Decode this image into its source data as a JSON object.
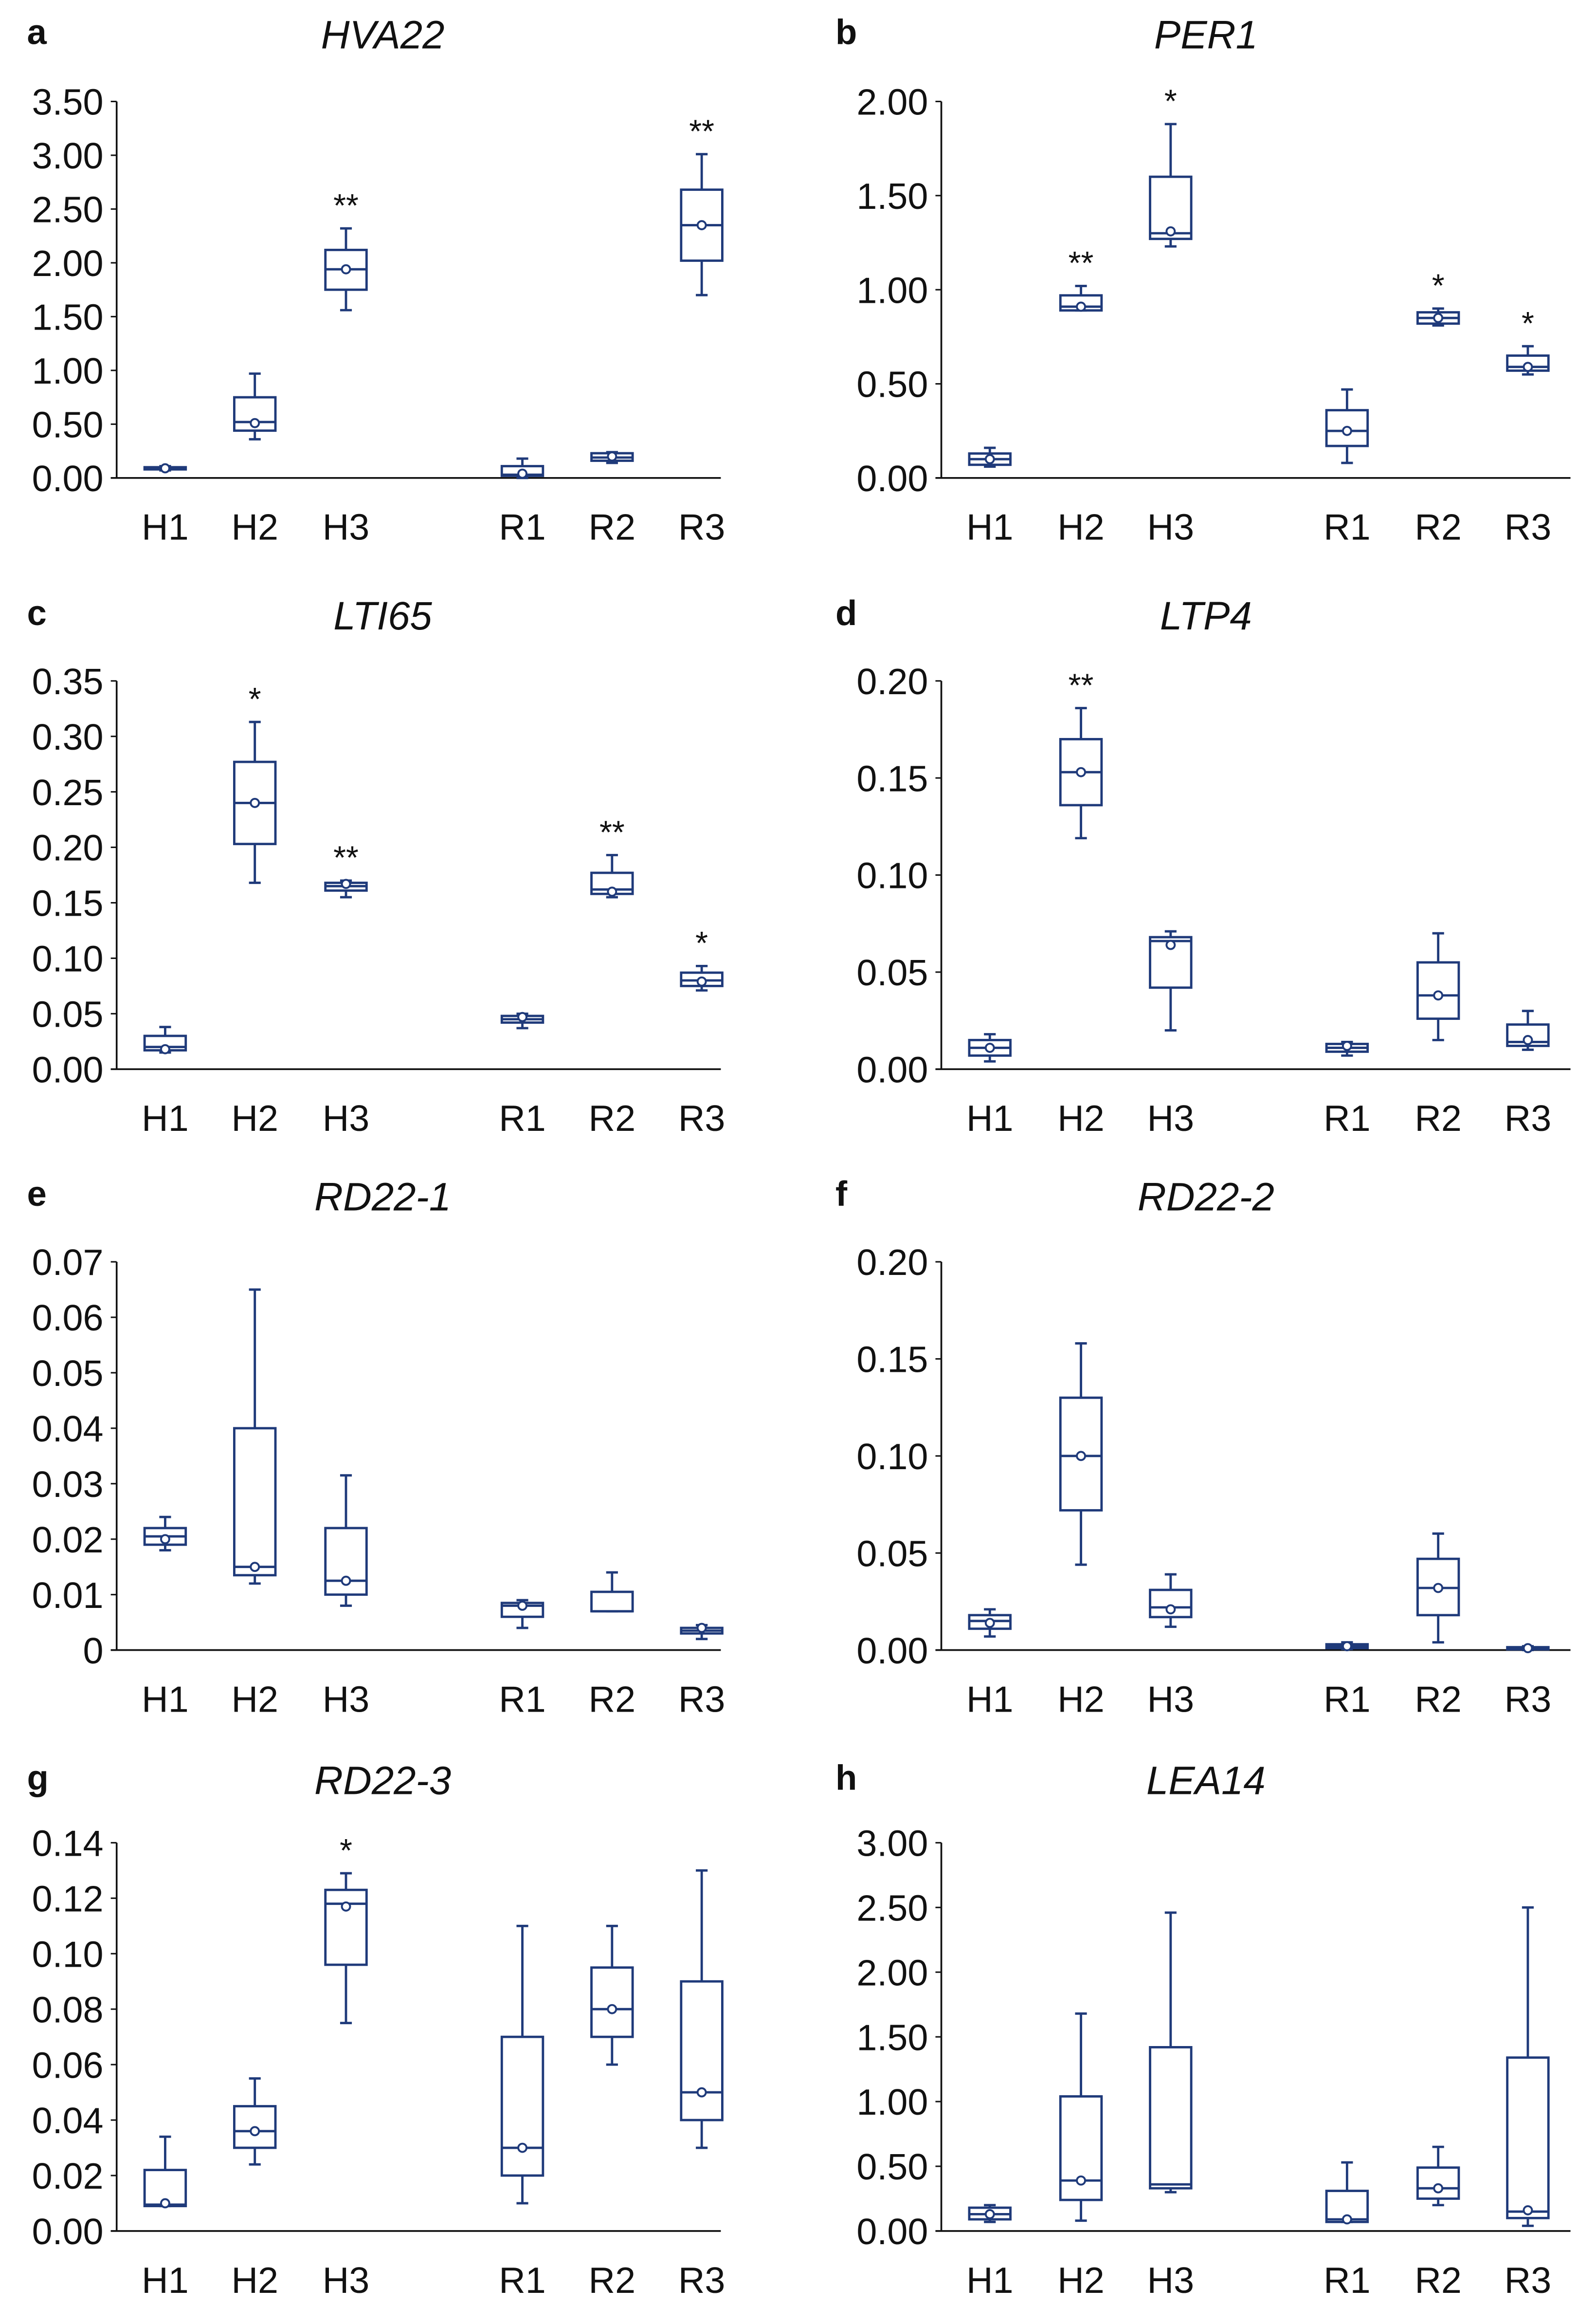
{
  "colors": {
    "box": "#1f3a7a",
    "axis": "#111111"
  },
  "chart_data": [
    {
      "type": "box",
      "letter": "a",
      "title": "HVA22",
      "categories": [
        "H1",
        "H2",
        "H3",
        "R1",
        "R2",
        "R3"
      ],
      "ylim": [
        0,
        3.5
      ],
      "yticks": [
        "0.00",
        "0.50",
        "1.00",
        "1.50",
        "2.00",
        "2.50",
        "3.00",
        "3.50"
      ],
      "ytick_values": [
        0,
        0.5,
        1,
        1.5,
        2,
        2.5,
        3,
        3.5
      ],
      "boxes": [
        {
          "min": 0.07,
          "q1": 0.08,
          "median": 0.09,
          "q3": 0.1,
          "max": 0.11,
          "mean": 0.09,
          "sig": ""
        },
        {
          "min": 0.36,
          "q1": 0.44,
          "median": 0.52,
          "q3": 0.75,
          "max": 0.97,
          "mean": 0.51,
          "sig": ""
        },
        {
          "min": 1.56,
          "q1": 1.75,
          "median": 1.94,
          "q3": 2.12,
          "max": 2.32,
          "mean": 1.94,
          "sig": "**"
        },
        {
          "min": 0.0,
          "q1": 0.02,
          "median": 0.03,
          "q3": 0.11,
          "max": 0.18,
          "mean": 0.04,
          "sig": ""
        },
        {
          "min": 0.14,
          "q1": 0.16,
          "median": 0.19,
          "q3": 0.23,
          "max": 0.24,
          "mean": 0.2,
          "sig": ""
        },
        {
          "min": 1.7,
          "q1": 2.02,
          "median": 2.35,
          "q3": 2.68,
          "max": 3.01,
          "mean": 2.35,
          "sig": "**"
        }
      ]
    },
    {
      "type": "box",
      "letter": "b",
      "title": "PER1",
      "categories": [
        "H1",
        "H2",
        "H3",
        "R1",
        "R2",
        "R3"
      ],
      "ylim": [
        0,
        2.0
      ],
      "yticks": [
        "0.00",
        "0.50",
        "1.00",
        "1.50",
        "2.00"
      ],
      "ytick_values": [
        0,
        0.5,
        1,
        1.5,
        2
      ],
      "boxes": [
        {
          "min": 0.06,
          "q1": 0.07,
          "median": 0.1,
          "q3": 0.13,
          "max": 0.16,
          "mean": 0.1,
          "sig": ""
        },
        {
          "min": 0.89,
          "q1": 0.89,
          "median": 0.91,
          "q3": 0.97,
          "max": 1.02,
          "mean": 0.91,
          "sig": "**"
        },
        {
          "min": 1.23,
          "q1": 1.27,
          "median": 1.3,
          "q3": 1.6,
          "max": 1.88,
          "mean": 1.31,
          "sig": "*"
        },
        {
          "min": 0.08,
          "q1": 0.17,
          "median": 0.25,
          "q3": 0.36,
          "max": 0.47,
          "mean": 0.25,
          "sig": ""
        },
        {
          "min": 0.81,
          "q1": 0.82,
          "median": 0.85,
          "q3": 0.88,
          "max": 0.9,
          "mean": 0.85,
          "sig": "*"
        },
        {
          "min": 0.55,
          "q1": 0.57,
          "median": 0.59,
          "q3": 0.65,
          "max": 0.7,
          "mean": 0.59,
          "sig": "*"
        }
      ]
    },
    {
      "type": "box",
      "letter": "c",
      "title": "LTI65",
      "categories": [
        "H1",
        "H2",
        "H3",
        "R1",
        "R2",
        "R3"
      ],
      "ylim": [
        0,
        0.35
      ],
      "yticks": [
        "0.00",
        "0.05",
        "0.10",
        "0.15",
        "0.20",
        "0.25",
        "0.30",
        "0.35"
      ],
      "ytick_values": [
        0,
        0.05,
        0.1,
        0.15,
        0.2,
        0.25,
        0.3,
        0.35
      ],
      "boxes": [
        {
          "min": 0.015,
          "q1": 0.017,
          "median": 0.02,
          "q3": 0.03,
          "max": 0.038,
          "mean": 0.018,
          "sig": ""
        },
        {
          "min": 0.168,
          "q1": 0.203,
          "median": 0.24,
          "q3": 0.277,
          "max": 0.313,
          "mean": 0.24,
          "sig": "*"
        },
        {
          "min": 0.155,
          "q1": 0.161,
          "median": 0.165,
          "q3": 0.168,
          "max": 0.17,
          "mean": 0.167,
          "sig": "**"
        },
        {
          "min": 0.037,
          "q1": 0.042,
          "median": 0.045,
          "q3": 0.048,
          "max": 0.05,
          "mean": 0.047,
          "sig": ""
        },
        {
          "min": 0.155,
          "q1": 0.158,
          "median": 0.162,
          "q3": 0.177,
          "max": 0.193,
          "mean": 0.16,
          "sig": "**"
        },
        {
          "min": 0.071,
          "q1": 0.075,
          "median": 0.08,
          "q3": 0.087,
          "max": 0.093,
          "mean": 0.079,
          "sig": "*"
        }
      ]
    },
    {
      "type": "box",
      "letter": "d",
      "title": "LTP4",
      "categories": [
        "H1",
        "H2",
        "H3",
        "R1",
        "R2",
        "R3"
      ],
      "ylim": [
        0,
        0.2
      ],
      "yticks": [
        "0.00",
        "0.05",
        "0.10",
        "0.15",
        "0.20"
      ],
      "ytick_values": [
        0,
        0.05,
        0.1,
        0.15,
        0.2
      ],
      "boxes": [
        {
          "min": 0.004,
          "q1": 0.007,
          "median": 0.011,
          "q3": 0.015,
          "max": 0.018,
          "mean": 0.011,
          "sig": ""
        },
        {
          "min": 0.119,
          "q1": 0.136,
          "median": 0.153,
          "q3": 0.17,
          "max": 0.186,
          "mean": 0.153,
          "sig": "**"
        },
        {
          "min": 0.02,
          "q1": 0.042,
          "median": 0.066,
          "q3": 0.068,
          "max": 0.071,
          "mean": 0.064,
          "sig": ""
        },
        {
          "min": 0.007,
          "q1": 0.009,
          "median": 0.011,
          "q3": 0.013,
          "max": 0.014,
          "mean": 0.012,
          "sig": ""
        },
        {
          "min": 0.015,
          "q1": 0.026,
          "median": 0.038,
          "q3": 0.055,
          "max": 0.07,
          "mean": 0.038,
          "sig": ""
        },
        {
          "min": 0.01,
          "q1": 0.012,
          "median": 0.014,
          "q3": 0.023,
          "max": 0.03,
          "mean": 0.015,
          "sig": ""
        }
      ]
    },
    {
      "type": "box",
      "letter": "e",
      "title": "RD22-1",
      "categories": [
        "H1",
        "H2",
        "H3",
        "R1",
        "R2",
        "R3"
      ],
      "ylim": [
        0,
        0.07
      ],
      "yticks": [
        "0",
        "0.01",
        "0.02",
        "0.03",
        "0.04",
        "0.05",
        "0.06",
        "0.07"
      ],
      "ytick_values": [
        0,
        0.01,
        0.02,
        0.03,
        0.04,
        0.05,
        0.06,
        0.07
      ],
      "boxes": [
        {
          "min": 0.018,
          "q1": 0.019,
          "median": 0.0205,
          "q3": 0.022,
          "max": 0.024,
          "mean": 0.02,
          "sig": ""
        },
        {
          "min": 0.012,
          "q1": 0.0135,
          "median": 0.015,
          "q3": 0.04,
          "max": 0.065,
          "mean": 0.015,
          "sig": ""
        },
        {
          "min": 0.008,
          "q1": 0.01,
          "median": 0.0125,
          "q3": 0.022,
          "max": 0.0315,
          "mean": 0.0125,
          "sig": ""
        },
        {
          "min": 0.004,
          "q1": 0.006,
          "median": 0.008,
          "q3": 0.0085,
          "max": 0.009,
          "mean": 0.008,
          "sig": ""
        },
        {
          "min": 0.007,
          "q1": 0.007,
          "median": 0.007,
          "q3": 0.0105,
          "max": 0.014,
          "mean": null,
          "sig": ""
        },
        {
          "min": 0.002,
          "q1": 0.003,
          "median": 0.0035,
          "q3": 0.004,
          "max": 0.0045,
          "mean": 0.004,
          "sig": ""
        }
      ]
    },
    {
      "type": "box",
      "letter": "f",
      "title": "RD22-2",
      "categories": [
        "H1",
        "H2",
        "H3",
        "R1",
        "R2",
        "R3"
      ],
      "ylim": [
        0,
        0.2
      ],
      "yticks": [
        "0.00",
        "0.05",
        "0.10",
        "0.15",
        "0.20"
      ],
      "ytick_values": [
        0,
        0.05,
        0.1,
        0.15,
        0.2
      ],
      "boxes": [
        {
          "min": 0.007,
          "q1": 0.011,
          "median": 0.015,
          "q3": 0.018,
          "max": 0.021,
          "mean": 0.014,
          "sig": ""
        },
        {
          "min": 0.044,
          "q1": 0.072,
          "median": 0.1,
          "q3": 0.13,
          "max": 0.158,
          "mean": 0.1,
          "sig": ""
        },
        {
          "min": 0.012,
          "q1": 0.017,
          "median": 0.022,
          "q3": 0.031,
          "max": 0.039,
          "mean": 0.021,
          "sig": ""
        },
        {
          "min": 0.0005,
          "q1": 0.001,
          "median": 0.002,
          "q3": 0.003,
          "max": 0.004,
          "mean": 0.002,
          "sig": ""
        },
        {
          "min": 0.004,
          "q1": 0.018,
          "median": 0.032,
          "q3": 0.047,
          "max": 0.06,
          "mean": 0.032,
          "sig": ""
        },
        {
          "min": 0.0,
          "q1": 0.0005,
          "median": 0.001,
          "q3": 0.0015,
          "max": 0.002,
          "mean": 0.001,
          "sig": ""
        }
      ]
    },
    {
      "type": "box",
      "letter": "g",
      "title": "RD22-3",
      "categories": [
        "H1",
        "H2",
        "H3",
        "R1",
        "R2",
        "R3"
      ],
      "ylim": [
        0,
        0.14
      ],
      "yticks": [
        "0.00",
        "0.02",
        "0.04",
        "0.06",
        "0.08",
        "0.10",
        "0.12",
        "0.14"
      ],
      "ytick_values": [
        0,
        0.02,
        0.04,
        0.06,
        0.08,
        0.1,
        0.12,
        0.14
      ],
      "boxes": [
        {
          "min": 0.009,
          "q1": 0.009,
          "median": 0.0095,
          "q3": 0.022,
          "max": 0.034,
          "mean": 0.01,
          "sig": ""
        },
        {
          "min": 0.024,
          "q1": 0.03,
          "median": 0.036,
          "q3": 0.045,
          "max": 0.055,
          "mean": 0.036,
          "sig": ""
        },
        {
          "min": 0.075,
          "q1": 0.096,
          "median": 0.118,
          "q3": 0.123,
          "max": 0.129,
          "mean": 0.117,
          "sig": "*"
        },
        {
          "min": 0.01,
          "q1": 0.02,
          "median": 0.03,
          "q3": 0.07,
          "max": 0.11,
          "mean": 0.03,
          "sig": ""
        },
        {
          "min": 0.06,
          "q1": 0.07,
          "median": 0.08,
          "q3": 0.095,
          "max": 0.11,
          "mean": 0.08,
          "sig": ""
        },
        {
          "min": 0.03,
          "q1": 0.04,
          "median": 0.05,
          "q3": 0.09,
          "max": 0.13,
          "mean": 0.05,
          "sig": ""
        }
      ]
    },
    {
      "type": "box",
      "letter": "h",
      "title": "LEA14",
      "categories": [
        "H1",
        "H2",
        "H3",
        "R1",
        "R2",
        "R3"
      ],
      "ylim": [
        0,
        3.0
      ],
      "yticks": [
        "0.00",
        "0.50",
        "1.00",
        "1.50",
        "2.00",
        "2.50",
        "3.00"
      ],
      "ytick_values": [
        0,
        0.5,
        1,
        1.5,
        2,
        2.5,
        3
      ],
      "boxes": [
        {
          "min": 0.07,
          "q1": 0.09,
          "median": 0.13,
          "q3": 0.18,
          "max": 0.2,
          "mean": 0.13,
          "sig": ""
        },
        {
          "min": 0.08,
          "q1": 0.24,
          "median": 0.39,
          "q3": 1.04,
          "max": 1.68,
          "mean": 0.39,
          "sig": ""
        },
        {
          "min": 0.3,
          "q1": 0.33,
          "median": 0.36,
          "q3": 1.42,
          "max": 2.46,
          "mean": null,
          "sig": ""
        },
        {
          "min": 0.07,
          "q1": 0.07,
          "median": 0.09,
          "q3": 0.31,
          "max": 0.53,
          "mean": 0.09,
          "sig": ""
        },
        {
          "min": 0.2,
          "q1": 0.25,
          "median": 0.33,
          "q3": 0.49,
          "max": 0.65,
          "mean": 0.33,
          "sig": ""
        },
        {
          "min": 0.04,
          "q1": 0.1,
          "median": 0.15,
          "q3": 1.34,
          "max": 2.5,
          "mean": 0.16,
          "sig": ""
        }
      ]
    }
  ]
}
